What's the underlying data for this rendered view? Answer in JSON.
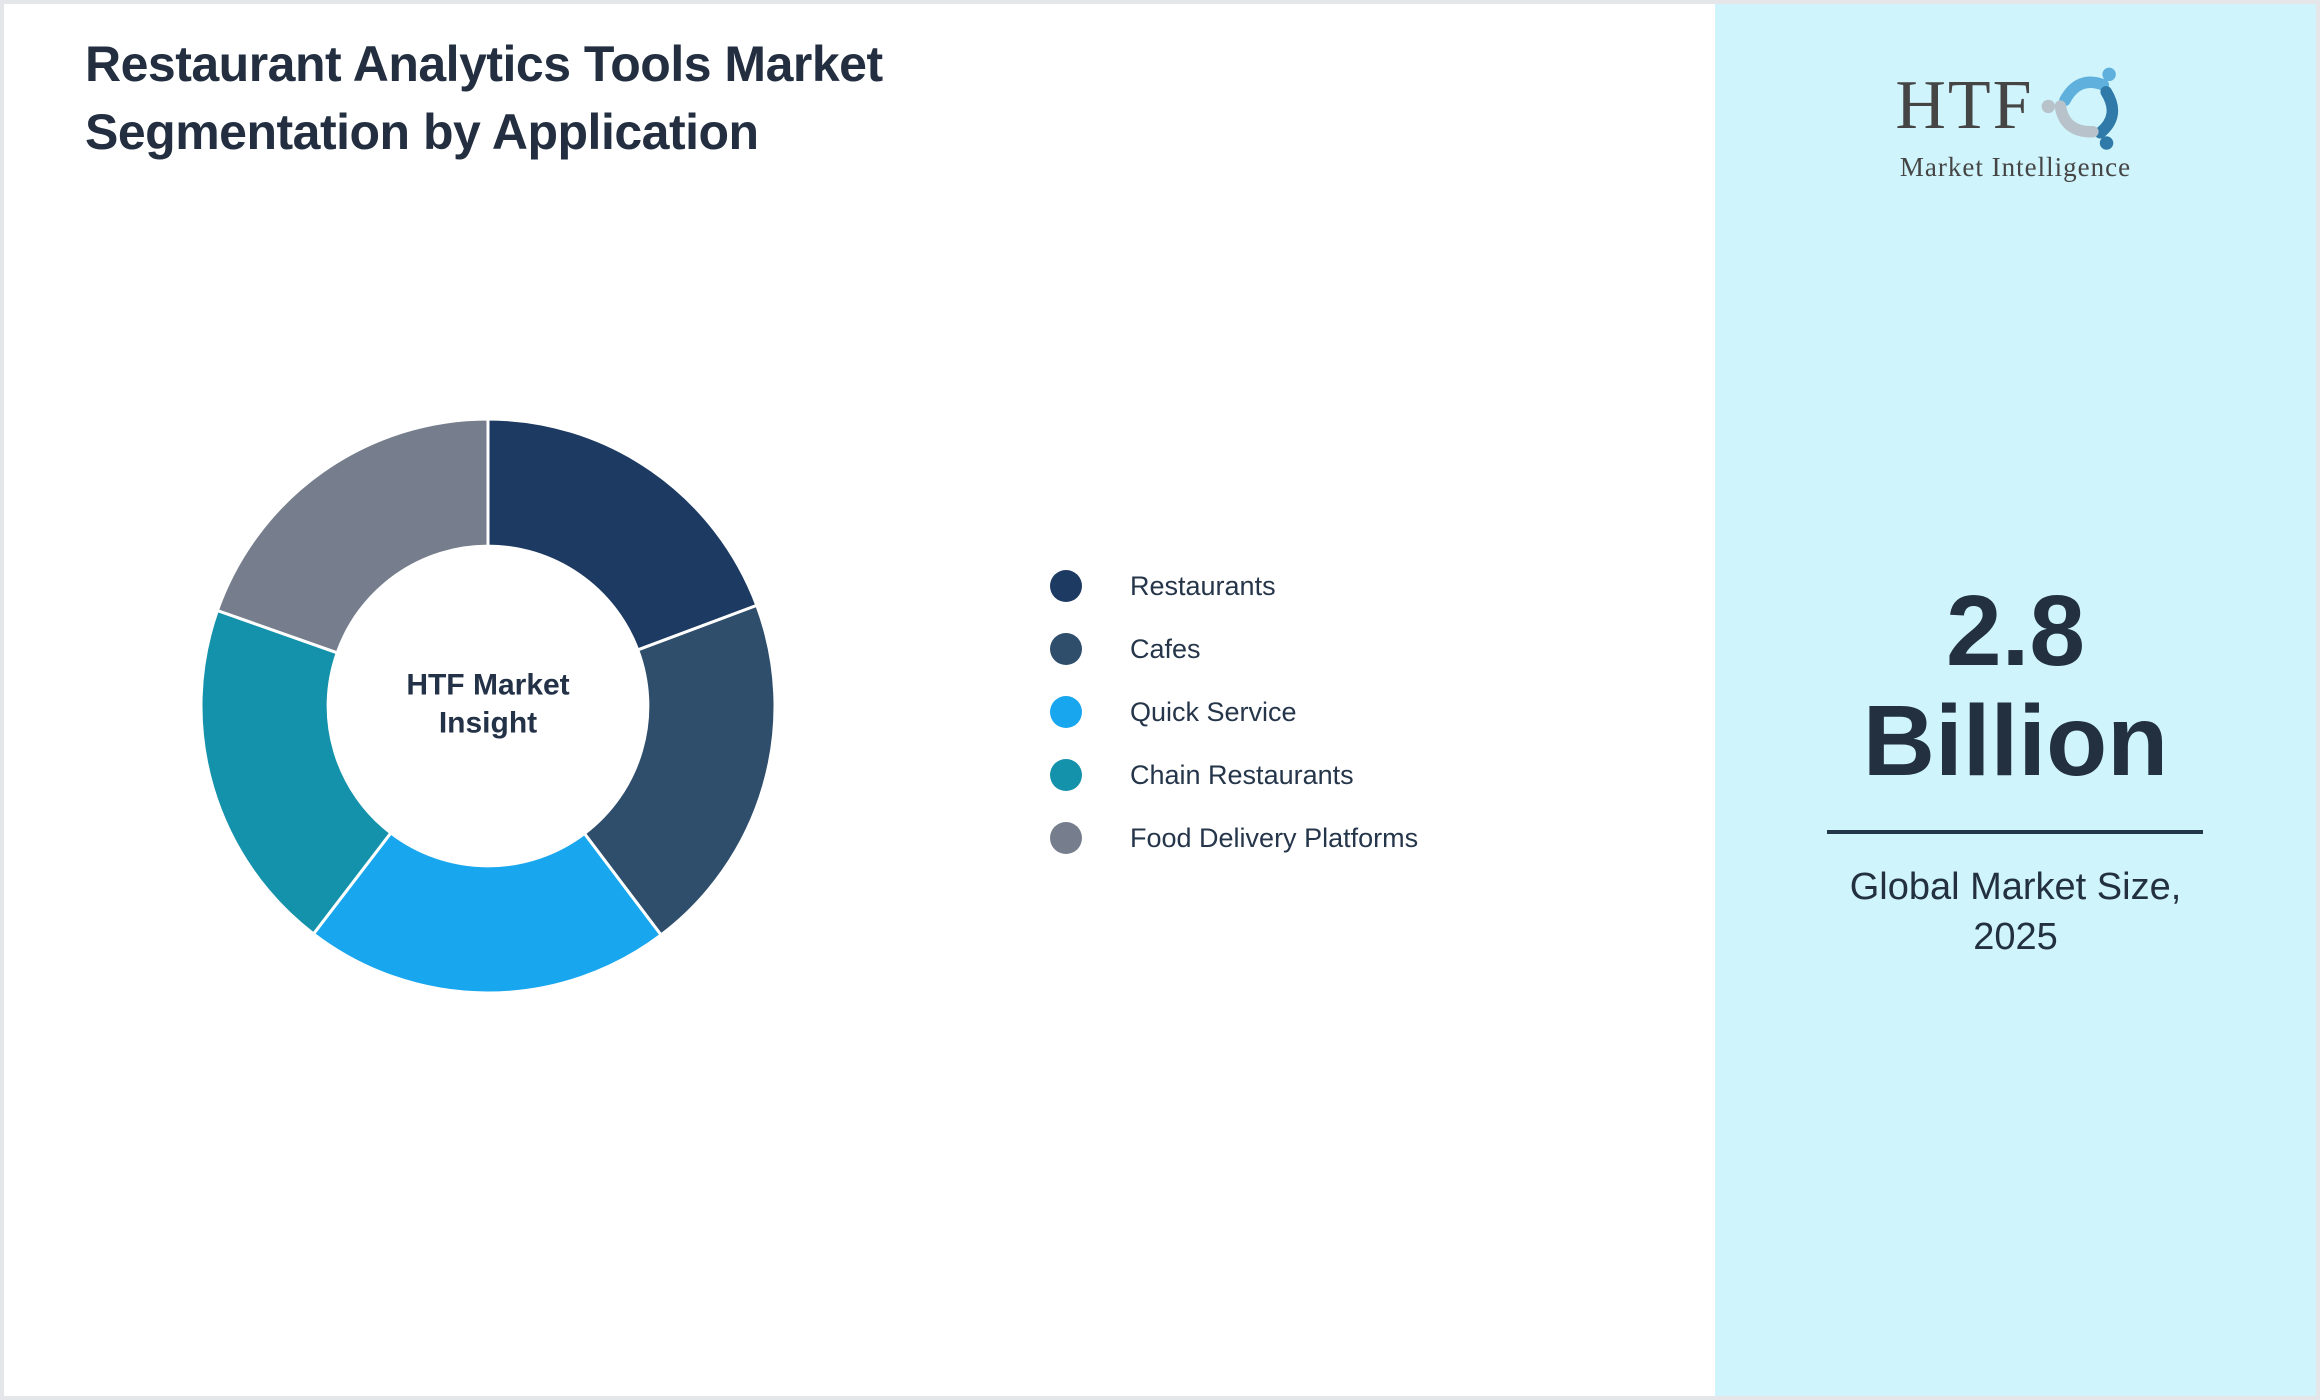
{
  "page": {
    "title_line1": "Restaurant Analytics Tools Market",
    "title_line2": "Segmentation by Application"
  },
  "logo": {
    "name": "HTF",
    "tagline": "Market Intelligence",
    "colors": {
      "text": "#454545",
      "swirl_top": "#5fb0dd",
      "swirl_right": "#2f7aa8",
      "swirl_left": "#b8c2ca"
    }
  },
  "panel": {
    "background": "#cff4fb",
    "value_line1": "2.8",
    "value_line2": "Billion",
    "caption_line1": "Global Market Size,",
    "caption_line2": "2025"
  },
  "chart_data": {
    "type": "pie",
    "subtype": "donut",
    "title": "Restaurant Analytics Tools Market Segmentation by Application",
    "center_label_line1": "HTF Market",
    "center_label_line2": "Insight",
    "categories": [
      "Restaurants",
      "Cafes",
      "Quick Service",
      "Chain Restaurants",
      "Food Delivery Platforms"
    ],
    "values": [
      19.3,
      20.4,
      20.7,
      20.0,
      19.6
    ],
    "unit": "percent_of_circle",
    "colors": [
      "#1d3a62",
      "#2f4e6c",
      "#18a7ee",
      "#1492ab",
      "#767e8d"
    ],
    "start_angle_deg": 0,
    "direction": "clockwise",
    "outer_radius_px": 287,
    "inner_radius_ratio": 0.557,
    "segment_gap_color": "#ffffff",
    "legend_position": "right",
    "text_color": "#25354a"
  }
}
